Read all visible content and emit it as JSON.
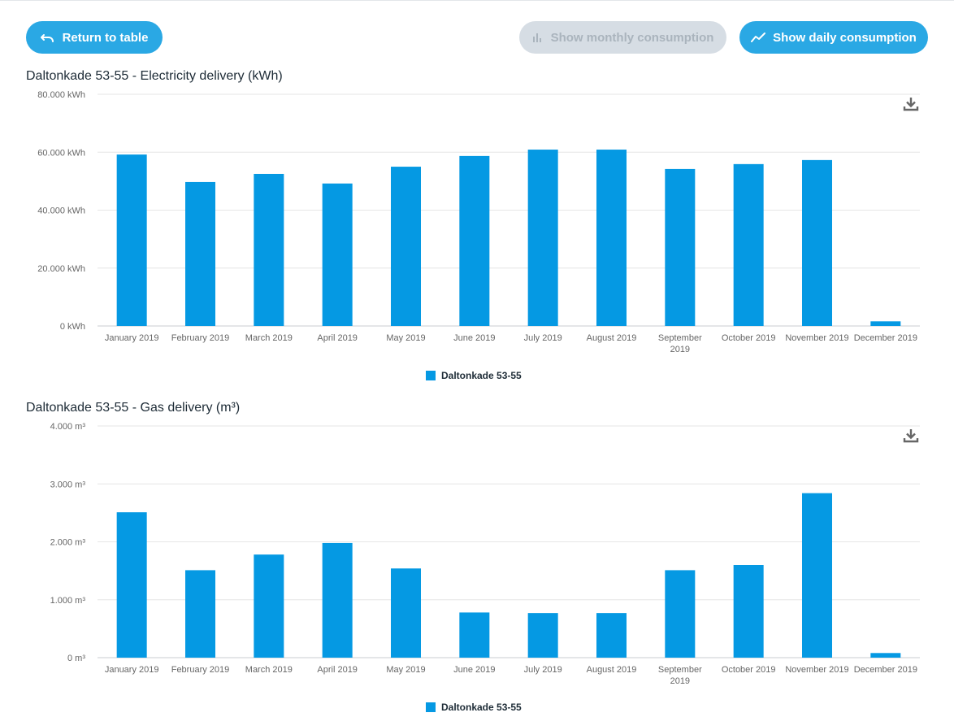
{
  "toolbar": {
    "return_label": "Return to table",
    "monthly_label": "Show monthly consumption",
    "daily_label": "Show daily consumption"
  },
  "colors": {
    "bar": "#0599e3",
    "button": "#2aa8e4",
    "button_disabled": "#d6dde4",
    "grid": "#e6e6e6"
  },
  "icons": {
    "return": "undo-arrow-icon",
    "monthly": "bar-chart-icon",
    "daily": "trend-line-icon",
    "download": "download-icon"
  },
  "chart_data": [
    {
      "type": "bar",
      "title": "Daltonkade 53-55 - Electricity delivery (kWh)",
      "categories": [
        "January 2019",
        "February 2019",
        "March 2019",
        "April 2019",
        "May 2019",
        "June 2019",
        "July 2019",
        "August 2019",
        "September 2019",
        "October 2019",
        "November 2019",
        "December 2019"
      ],
      "series": [
        {
          "name": "Daltonkade 53-55",
          "values": [
            59200,
            49700,
            52500,
            49200,
            55000,
            58700,
            60900,
            60900,
            54200,
            55900,
            57300,
            1600
          ]
        }
      ],
      "ylim": [
        0,
        80000
      ],
      "yticks": [
        "0 kWh",
        "20.000 kWh",
        "40.000 kWh",
        "60.000 kWh",
        "80.000 kWh"
      ],
      "legend_position": "bottom-center",
      "grid": true
    },
    {
      "type": "bar",
      "title": "Daltonkade 53-55 - Gas delivery (m³)",
      "categories": [
        "January 2019",
        "February 2019",
        "March 2019",
        "April 2019",
        "May 2019",
        "June 2019",
        "July 2019",
        "August 2019",
        "September 2019",
        "October 2019",
        "November 2019",
        "December 2019"
      ],
      "series": [
        {
          "name": "Daltonkade 53-55",
          "values": [
            2510,
            1510,
            1780,
            1980,
            1540,
            780,
            770,
            770,
            1510,
            1600,
            2840,
            80
          ]
        }
      ],
      "ylim": [
        0,
        4000
      ],
      "yticks": [
        "0 m³",
        "1.000 m³",
        "2.000 m³",
        "3.000 m³",
        "4.000 m³"
      ],
      "legend_position": "bottom-center",
      "grid": true
    }
  ]
}
